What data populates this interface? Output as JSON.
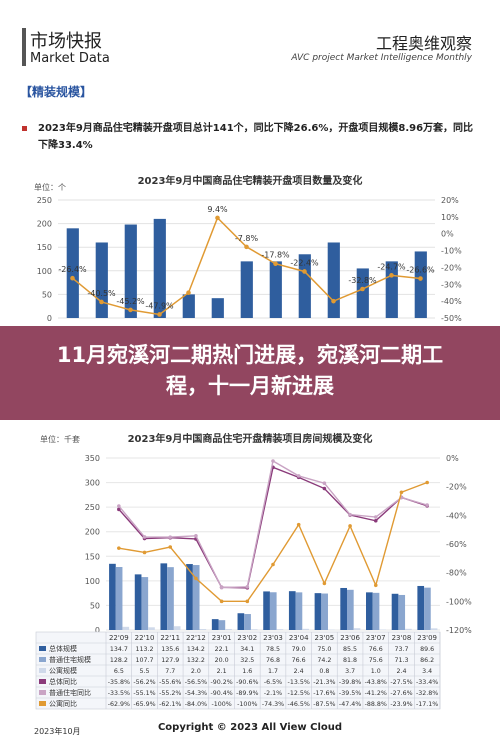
{
  "header": {
    "left_cn": "市场快报",
    "left_en": "Market Data",
    "right_cn": "工程奥维观察",
    "right_en": "AVC  project Market Intelligence Monthly"
  },
  "section_title": "【精装规模】",
  "summary": "2023年9月商品住宅精装开盘项目总计141个，同比下降26.6%，开盘项目规模8.96万套，同比下降33.4%",
  "banner": "11月宛溪河二期热门进展，宛溪河二期工程，十一月新进展",
  "copyright": "Copyright © 2023  All View Cloud",
  "footnote": "2023年10月",
  "chart_data": [
    {
      "type": "bar",
      "title": "2023年9月中国商品住宅精装开盘项目数量及变化",
      "ylabel": "单位：个",
      "ylim": [
        0,
        250
      ],
      "y2lim": [
        -50,
        20
      ],
      "y_ticks": [
        "250",
        "200",
        "150",
        "100",
        "50",
        "0"
      ],
      "y2_ticks": [
        "20%",
        "10%",
        "0%",
        "-10%",
        "-20%",
        "-30%",
        "-40%",
        "-50%"
      ],
      "bar_values": [
        190,
        160,
        198,
        210,
        50,
        42,
        120,
        120,
        135,
        160,
        105,
        120,
        141
      ],
      "line_values": [
        -26.4,
        -40.5,
        -45.2,
        -47.9,
        -35,
        9.4,
        -7.8,
        -17.8,
        -22.4,
        -40,
        -32.8,
        -24.7,
        -26.6
      ],
      "labels": [
        "-26.4%",
        "-40.5%",
        "-45.2%",
        "-47.9%",
        "",
        "9.4%",
        "-7.8%",
        "-17.8%",
        "-22.4%",
        "",
        "-32.8%",
        "-24.7%",
        "-26.6%"
      ]
    },
    {
      "type": "bar",
      "title": "2023年9月中国商品住宅开盘精装项目房间规模及变化",
      "ylabel": "单位：千套",
      "ylim": [
        0,
        350
      ],
      "y2lim": [
        -120,
        0
      ],
      "y_ticks": [
        "350",
        "300",
        "250",
        "200",
        "150",
        "100",
        "50",
        "0"
      ],
      "y2_ticks": [
        "0%",
        "-20%",
        "-40%",
        "-60%",
        "-80%",
        "-100%",
        "-120%"
      ],
      "categories": [
        "22'09",
        "22'10",
        "22'11",
        "22'12",
        "23'01",
        "23'02",
        "23'03",
        "23'04",
        "23'05",
        "23'06",
        "23'07",
        "23'08",
        "23'09"
      ],
      "series": [
        {
          "name": "总体规模",
          "values": [
            "134.7",
            "113.2",
            "135.6",
            "134.2",
            "22.1",
            "34.1",
            "78.5",
            "79.0",
            "75.0",
            "85.5",
            "76.6",
            "73.7",
            "89.6"
          ],
          "color": "#2f5e9e"
        },
        {
          "name": "普通住宅规模",
          "values": [
            "128.2",
            "107.7",
            "127.9",
            "132.2",
            "20.0",
            "32.5",
            "76.8",
            "76.6",
            "74.2",
            "81.8",
            "75.6",
            "71.3",
            "86.2"
          ],
          "color": "#8aa6cf"
        },
        {
          "name": "公寓规模",
          "values": [
            "6.5",
            "5.5",
            "7.7",
            "2.0",
            "2.1",
            "1.6",
            "1.7",
            "2.4",
            "0.8",
            "3.7",
            "1.0",
            "2.4",
            "3.4"
          ],
          "color": "#cfd9ea"
        },
        {
          "name": "总体同比",
          "values": [
            "-35.8%",
            "-56.2%",
            "-55.6%",
            "-56.5%",
            "-90.2%",
            "-90.6%",
            "-6.5%",
            "-13.5%",
            "-21.3%",
            "-39.8%",
            "-43.8%",
            "-27.5%",
            "-33.4%"
          ],
          "color": "#8a3a7a"
        },
        {
          "name": "普通住宅同比",
          "values": [
            "-33.5%",
            "-55.1%",
            "-55.2%",
            "-54.3%",
            "-90.4%",
            "-89.9%",
            "-2.1%",
            "-12.5%",
            "-17.6%",
            "-39.5%",
            "-41.2%",
            "-27.6%",
            "-32.8%"
          ],
          "color": "#c9a4c4"
        },
        {
          "name": "公寓同比",
          "values": [
            "-62.9%",
            "-65.9%",
            "-62.1%",
            "-84.0%",
            "-100%",
            "-100%",
            "-74.3%",
            "-46.5%",
            "-87.5%",
            "-47.4%",
            "-88.8%",
            "-23.9%",
            "-17.1%"
          ],
          "color": "#e09a33"
        }
      ]
    }
  ]
}
